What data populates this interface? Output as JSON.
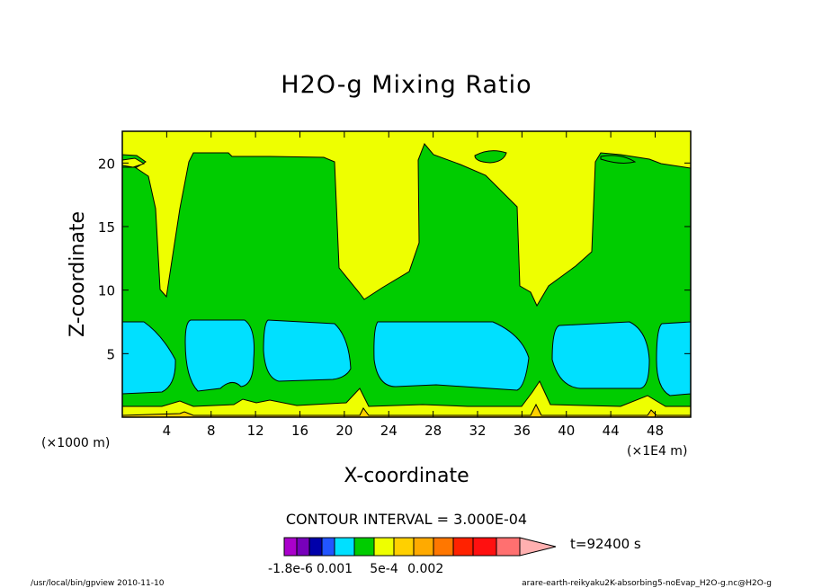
{
  "chart_data": {
    "type": "contour",
    "title": "H2O-g Mixing Ratio",
    "xlabel": "X-coordinate",
    "ylabel": "Z-coordinate",
    "x_unit": "(×1E4 m)",
    "y_unit": "(×1000 m)",
    "xlim": [
      0,
      51.2
    ],
    "ylim": [
      0,
      22.5
    ],
    "xticks": [
      4,
      8,
      12,
      16,
      20,
      24,
      28,
      32,
      36,
      40,
      44,
      48
    ],
    "yticks": [
      5,
      10,
      15,
      20
    ],
    "contour_interval": "CONTOUR INTERVAL = 3.000E-04",
    "time_label": "t=92400 s",
    "colorbar": {
      "colors": [
        "#aa00cc",
        "#7700bb",
        "#0000aa",
        "#2255ff",
        "#00e0ff",
        "#00cc00",
        "#eeff00",
        "#ffd000",
        "#ffaa00",
        "#ff7700",
        "#ff2200",
        "#ff1010",
        "#ff7070",
        "#ffb0b0"
      ],
      "labels": [
        {
          "text": "-1.8e-6",
          "index": 0.5
        },
        {
          "text": "0.001",
          "index": 4
        },
        {
          "text": "5e-4",
          "index": 6.5
        },
        {
          "text": "0.002",
          "index": 8.6
        }
      ]
    },
    "colors": {
      "background": "#eeff00",
      "mid": "#00cc00",
      "low": "#00e0ff",
      "surface": "#ffd000"
    }
  },
  "footer": {
    "left": "/usr/local/bin/gpview  2010-11-10",
    "right": "arare-earth-reikyaku2K-absorbing5-noEvap_H2O-g.nc@H2O-g"
  }
}
